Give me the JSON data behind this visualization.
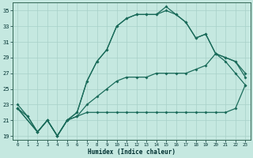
{
  "xlabel": "Humidex (Indice chaleur)",
  "bg_color": "#c5e8e0",
  "grid_color": "#a8d0c8",
  "line_color": "#1a6b5a",
  "xlim": [
    -0.5,
    23.5
  ],
  "ylim": [
    18.5,
    36.0
  ],
  "yticks": [
    19,
    21,
    23,
    25,
    27,
    29,
    31,
    33,
    35
  ],
  "xticks": [
    0,
    1,
    2,
    3,
    4,
    5,
    6,
    7,
    8,
    9,
    10,
    11,
    12,
    13,
    14,
    15,
    16,
    17,
    18,
    19,
    20,
    21,
    22,
    23
  ],
  "line1_x": [
    0,
    1,
    2,
    3,
    4,
    5,
    6,
    7,
    8,
    9,
    10,
    11,
    12,
    13,
    14,
    15,
    16,
    17,
    18,
    19,
    20,
    21,
    22,
    23
  ],
  "line1_y": [
    23.0,
    21.5,
    19.5,
    21.0,
    19.0,
    21.0,
    21.5,
    22.0,
    22.0,
    22.0,
    22.0,
    22.0,
    22.0,
    22.0,
    22.0,
    22.0,
    22.0,
    22.0,
    22.0,
    22.0,
    22.0,
    22.0,
    22.5,
    25.5
  ],
  "line2_x": [
    0,
    1,
    2,
    3,
    4,
    5,
    6,
    7,
    8,
    9,
    10,
    11,
    12,
    13,
    14,
    15,
    16,
    17,
    18,
    19,
    20,
    21,
    22,
    23
  ],
  "line2_y": [
    22.5,
    21.5,
    19.5,
    21.0,
    19.0,
    21.0,
    21.5,
    23.0,
    24.0,
    25.0,
    26.0,
    26.5,
    26.5,
    26.5,
    27.0,
    27.0,
    27.0,
    27.0,
    27.5,
    28.0,
    29.5,
    29.0,
    28.5,
    26.5
  ],
  "line3_x": [
    0,
    2,
    3,
    4,
    5,
    6,
    7,
    8,
    9,
    10,
    11,
    12,
    13,
    14,
    15,
    16,
    17,
    18,
    19,
    20,
    21,
    22,
    23
  ],
  "line3_y": [
    22.5,
    19.5,
    21.0,
    19.0,
    21.0,
    22.0,
    26.0,
    28.5,
    30.0,
    33.0,
    34.0,
    34.5,
    34.5,
    34.5,
    35.0,
    34.5,
    33.5,
    31.5,
    32.0,
    29.5,
    29.0,
    28.5,
    27.0
  ],
  "line4_x": [
    0,
    2,
    3,
    4,
    5,
    6,
    7,
    8,
    9,
    10,
    11,
    12,
    13,
    14,
    15,
    16,
    17,
    18,
    19,
    20,
    21,
    22,
    23
  ],
  "line4_y": [
    22.5,
    19.5,
    21.0,
    19.0,
    21.0,
    22.0,
    26.0,
    28.5,
    30.0,
    33.0,
    34.0,
    34.5,
    34.5,
    34.5,
    35.5,
    34.5,
    33.5,
    31.5,
    32.0,
    29.5,
    28.5,
    27.0,
    25.5
  ]
}
